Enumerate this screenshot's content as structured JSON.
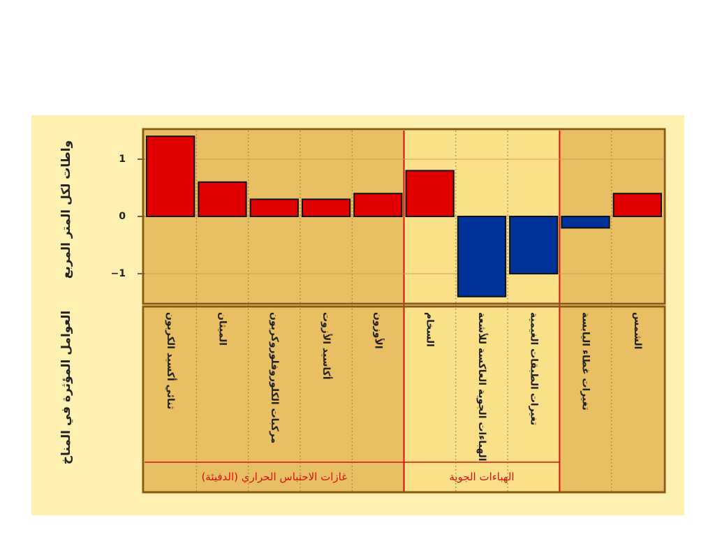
{
  "chart_data": {
    "type": "bar",
    "y_label": "واطات لكل المتر المربع",
    "x_label": "العوامل المؤثرة في المناخ",
    "categories": [
      "ثنائي أكسيد الكربون",
      "الميثان",
      "مركبات الكلوروفلوروكربون",
      "أكاسيد الأزوت",
      "الأوزون",
      "السخام",
      "الهباءات الجوية العاكسة للأشعة",
      "تغيرات الطبقات الغيمية",
      "تغيرات غطاء اليابسة",
      "الشمس"
    ],
    "values": [
      1.4,
      0.6,
      0.3,
      0.3,
      0.4,
      0.8,
      -1.4,
      -1.0,
      -0.2,
      0.4
    ],
    "color_positive": "#e00000",
    "color_negative": "#003399",
    "groups": [
      {
        "label": "غازات الاحتباس الحراري (الدفيئة)",
        "span": 5
      },
      {
        "label": "الهباءات الجوية",
        "span": 3
      },
      {
        "span": 2
      }
    ],
    "ylim": [
      -1.5,
      1.5
    ],
    "yticks": [
      {
        "value": -1,
        "label": "−1"
      },
      0,
      1
    ],
    "grid": true
  }
}
